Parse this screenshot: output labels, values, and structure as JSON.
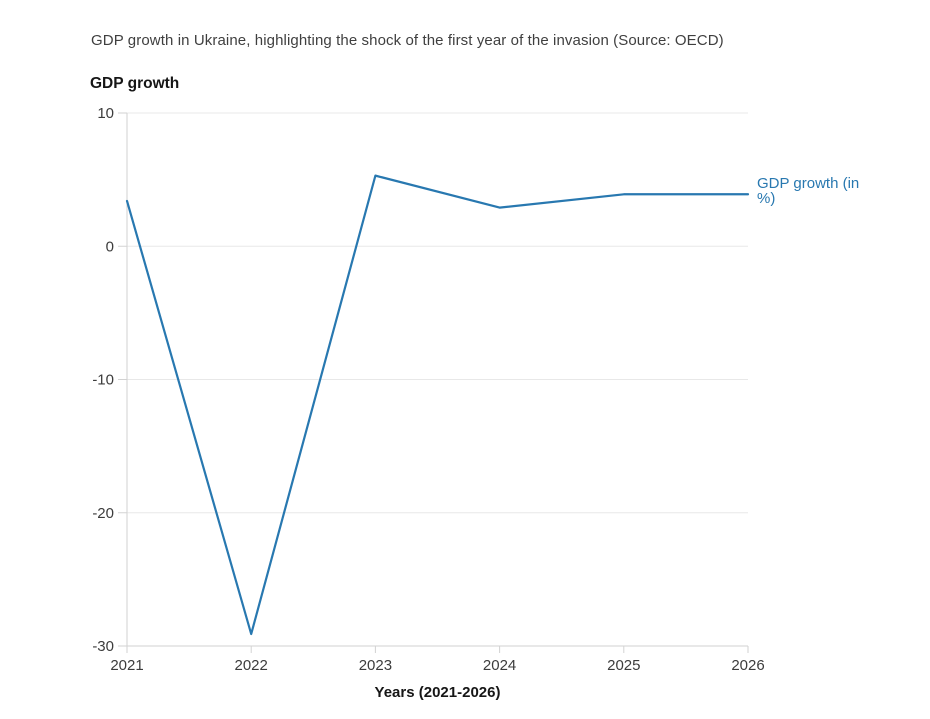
{
  "page": {
    "title": "GDP growth in Ukraine, highlighting the shock of the first year of the invasion (Source: OECD)"
  },
  "chart": {
    "y_axis_title": "GDP growth",
    "x_axis_title": "Years (2021-2026)",
    "legend_label": "GDP growth (in %)",
    "colors": {
      "line": "#2878b0",
      "grid": "#e8e8e8",
      "axis": "#d2d2d2",
      "tick_text": "#3c3c3c"
    }
  },
  "chart_data": {
    "type": "line",
    "title": "GDP growth in Ukraine, highlighting the shock of the first year of the invasion (Source: OECD)",
    "xlabel": "Years (2021-2026)",
    "ylabel": "GDP growth",
    "x": [
      2021,
      2022,
      2023,
      2024,
      2025,
      2026
    ],
    "series": [
      {
        "name": "GDP growth (in %)",
        "values": [
          3.4,
          -29.1,
          5.3,
          2.9,
          3.9,
          3.9
        ],
        "color": "#2878b0"
      }
    ],
    "ylim": [
      -30,
      10
    ],
    "y_ticks": [
      10,
      0,
      -10,
      -20,
      -30
    ],
    "grid": "horizontal",
    "legend_position": "right-of-line-end"
  }
}
